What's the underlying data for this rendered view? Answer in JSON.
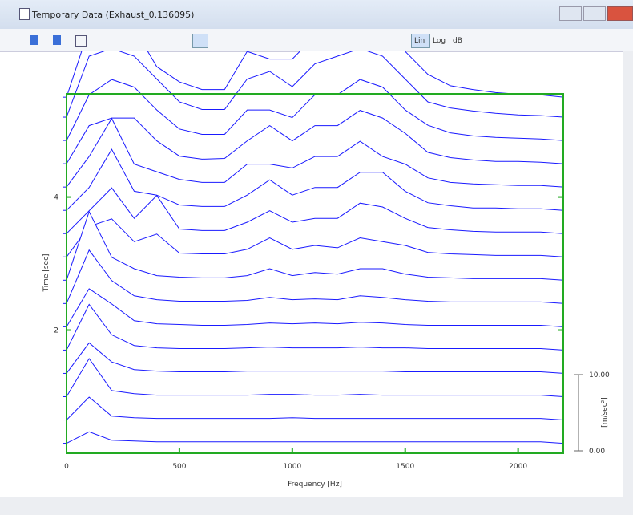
{
  "window": {
    "title": "Temporary Data (Exhaust_0.136095)"
  },
  "toolbar": {
    "buttons": [
      "Lin",
      "Log",
      "dB"
    ]
  },
  "chart_data": {
    "type": "waterfall",
    "x_label": "Frequency [Hz]",
    "y_label": "Time [sec]",
    "z_label": "[m/sec²]",
    "color": "#1a1aff",
    "frame_color": "#22aa22",
    "xlim": [
      0,
      2200
    ],
    "xticks": [
      0,
      500,
      1000,
      1500,
      2000
    ],
    "ylim": [
      0.15,
      5.55
    ],
    "yticks": [
      2,
      4
    ],
    "zlim": [
      0,
      10
    ],
    "zticks": [
      {
        "value": 0,
        "label": "0.00"
      },
      {
        "value": 10,
        "label": "10.00"
      }
    ],
    "x": [
      0,
      100,
      200,
      300,
      400,
      500,
      600,
      700,
      800,
      900,
      1000,
      1100,
      1200,
      1300,
      1400,
      1500,
      1600,
      1700,
      1800,
      1900,
      2000,
      2100,
      2200
    ],
    "traces": [
      {
        "time": 0.3,
        "values": [
          0,
          1.5,
          0.4,
          0.3,
          0.2,
          0.2,
          0.2,
          0.2,
          0.2,
          0.2,
          0.2,
          0.2,
          0.2,
          0.2,
          0.2,
          0.2,
          0.2,
          0.2,
          0.2,
          0.2,
          0.2,
          0.2,
          0
        ]
      },
      {
        "time": 0.65,
        "values": [
          0,
          3,
          0.5,
          0.3,
          0.2,
          0.2,
          0.2,
          0.2,
          0.2,
          0.2,
          0.3,
          0.2,
          0.2,
          0.2,
          0.2,
          0.2,
          0.2,
          0.2,
          0.2,
          0.2,
          0.2,
          0.2,
          0
        ]
      },
      {
        "time": 1.0,
        "values": [
          0,
          5,
          0.8,
          0.4,
          0.2,
          0.2,
          0.2,
          0.2,
          0.2,
          0.3,
          0.3,
          0.2,
          0.2,
          0.3,
          0.2,
          0.2,
          0.2,
          0.2,
          0.2,
          0.2,
          0.2,
          0.2,
          0
        ]
      },
      {
        "time": 1.35,
        "values": [
          0,
          4,
          1.5,
          0.5,
          0.3,
          0.2,
          0.2,
          0.2,
          0.3,
          0.3,
          0.3,
          0.3,
          0.3,
          0.3,
          0.3,
          0.2,
          0.2,
          0.2,
          0.2,
          0.2,
          0.2,
          0.2,
          0
        ]
      },
      {
        "time": 1.7,
        "values": [
          0,
          6,
          2,
          0.6,
          0.3,
          0.2,
          0.2,
          0.2,
          0.3,
          0.4,
          0.3,
          0.3,
          0.3,
          0.4,
          0.3,
          0.3,
          0.2,
          0.2,
          0.2,
          0.2,
          0.2,
          0.2,
          0
        ]
      },
      {
        "time": 2.05,
        "values": [
          0,
          5,
          3,
          0.8,
          0.4,
          0.3,
          0.2,
          0.2,
          0.3,
          0.5,
          0.4,
          0.5,
          0.4,
          0.6,
          0.5,
          0.3,
          0.2,
          0.2,
          0.2,
          0.2,
          0.2,
          0.2,
          0
        ]
      },
      {
        "time": 2.4,
        "values": [
          0,
          7,
          3,
          1,
          0.5,
          0.3,
          0.3,
          0.3,
          0.4,
          0.8,
          0.5,
          0.6,
          0.5,
          1,
          0.8,
          0.5,
          0.3,
          0.2,
          0.2,
          0.2,
          0.2,
          0.2,
          0
        ]
      },
      {
        "time": 2.75,
        "values": [
          0,
          9,
          3,
          1.5,
          0.6,
          0.4,
          0.3,
          0.3,
          0.6,
          1.5,
          0.6,
          1,
          0.8,
          1.5,
          1.5,
          0.8,
          0.4,
          0.3,
          0.2,
          0.2,
          0.2,
          0.2,
          0
        ]
      },
      {
        "time": 3.1,
        "values": [
          0,
          4,
          5,
          2,
          3,
          0.5,
          0.4,
          0.4,
          1,
          2.5,
          1,
          1.5,
          1.2,
          2.5,
          2,
          1.5,
          0.6,
          0.4,
          0.3,
          0.2,
          0.2,
          0.2,
          0
        ]
      },
      {
        "time": 3.45,
        "values": [
          0,
          3,
          6,
          2,
          5,
          0.6,
          0.4,
          0.4,
          1.5,
          3,
          1.5,
          2,
          2,
          4,
          3.5,
          2,
          0.8,
          0.5,
          0.3,
          0.2,
          0.2,
          0.2,
          0
        ]
      },
      {
        "time": 3.8,
        "values": [
          0,
          3,
          8,
          2.5,
          2,
          0.7,
          0.5,
          0.5,
          2,
          4,
          2,
          3,
          3,
          5,
          5,
          2.5,
          1,
          0.6,
          0.3,
          0.3,
          0.2,
          0.2,
          0
        ]
      },
      {
        "time": 4.15,
        "values": [
          0,
          4,
          9,
          3,
          2,
          1,
          0.6,
          0.6,
          3,
          3,
          2.5,
          4,
          4,
          6,
          4,
          3,
          1.2,
          0.6,
          0.4,
          0.3,
          0.2,
          0.2,
          0
        ]
      },
      {
        "time": 4.5,
        "values": [
          0,
          5,
          6,
          6,
          3,
          1,
          0.6,
          0.7,
          3,
          5,
          3,
          5,
          5,
          7,
          6,
          4,
          1.5,
          0.8,
          0.5,
          0.3,
          0.3,
          0.2,
          0
        ]
      },
      {
        "time": 4.85,
        "values": [
          0,
          6,
          8,
          7,
          4,
          1.5,
          0.8,
          0.8,
          4,
          4,
          3,
          6,
          6,
          8,
          7,
          4,
          2,
          1,
          0.6,
          0.4,
          0.3,
          0.2,
          0
        ]
      },
      {
        "time": 5.2,
        "values": [
          0,
          8,
          9,
          8,
          5,
          2,
          1,
          1,
          5,
          6,
          4,
          7,
          8,
          9,
          8,
          5,
          2,
          1.2,
          0.8,
          0.5,
          0.3,
          0.2,
          0
        ]
      },
      {
        "time": 5.5,
        "values": [
          0,
          9,
          10,
          9,
          4,
          2,
          1,
          1,
          6,
          5,
          5,
          8,
          9,
          10,
          9,
          6,
          3,
          1.5,
          1,
          0.6,
          0.4,
          0.3,
          0
        ]
      }
    ]
  }
}
